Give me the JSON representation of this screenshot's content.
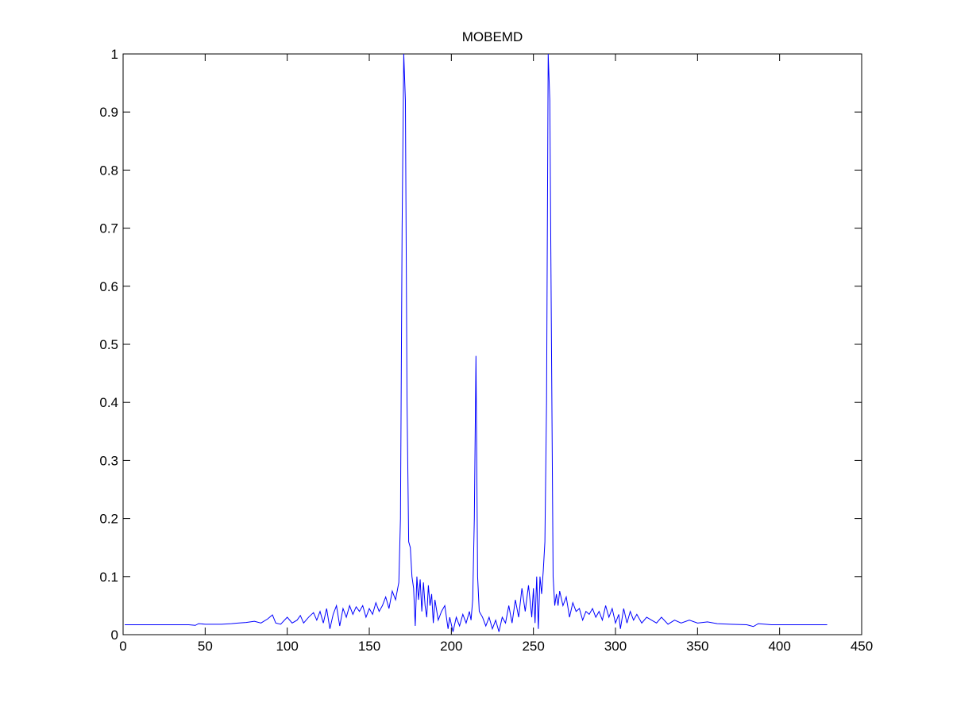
{
  "chart_data": {
    "type": "line",
    "title": "MOBEMD",
    "x": [
      1,
      20,
      40,
      44,
      46,
      50,
      60,
      66,
      70,
      75,
      80,
      84,
      88,
      91,
      93,
      96,
      100,
      103,
      106,
      108,
      110,
      113,
      116,
      118,
      120,
      122,
      124,
      126,
      128,
      130,
      132,
      134,
      136,
      138,
      140,
      142,
      144,
      146,
      148,
      150,
      152,
      154,
      156,
      158,
      160,
      162,
      164,
      166,
      168,
      169,
      170,
      171,
      172,
      173,
      174,
      175,
      176,
      177,
      178,
      179,
      180,
      181,
      182,
      183,
      184,
      185,
      186,
      187,
      188,
      189,
      190,
      192,
      194,
      196,
      198,
      199,
      201,
      203,
      205,
      207,
      209,
      211,
      212,
      213,
      214,
      215,
      216,
      217,
      219,
      221,
      223,
      225,
      227,
      229,
      231,
      233,
      235,
      237,
      239,
      241,
      243,
      245,
      247,
      249,
      250,
      251,
      252,
      253,
      254,
      255,
      256,
      257,
      258,
      259,
      260,
      261,
      262,
      263,
      264,
      265,
      266,
      268,
      270,
      272,
      274,
      276,
      278,
      280,
      282,
      284,
      286,
      288,
      290,
      292,
      294,
      296,
      298,
      300,
      302,
      303,
      305,
      307,
      309,
      311,
      313,
      316,
      319,
      322,
      325,
      328,
      332,
      336,
      340,
      345,
      350,
      356,
      362,
      370,
      380,
      384,
      387,
      395,
      410,
      429
    ],
    "series": [
      {
        "color": "#0000ff",
        "values": [
          0.017,
          0.017,
          0.017,
          0.016,
          0.019,
          0.018,
          0.018,
          0.019,
          0.02,
          0.021,
          0.023,
          0.02,
          0.027,
          0.034,
          0.02,
          0.018,
          0.03,
          0.02,
          0.025,
          0.033,
          0.02,
          0.03,
          0.038,
          0.025,
          0.04,
          0.02,
          0.045,
          0.01,
          0.035,
          0.05,
          0.015,
          0.045,
          0.03,
          0.05,
          0.035,
          0.048,
          0.04,
          0.05,
          0.03,
          0.045,
          0.035,
          0.055,
          0.04,
          0.05,
          0.065,
          0.045,
          0.075,
          0.06,
          0.09,
          0.2,
          0.7,
          1,
          0.92,
          0.4,
          0.16,
          0.15,
          0.1,
          0.08,
          0.015,
          0.1,
          0.06,
          0.095,
          0.04,
          0.09,
          0.05,
          0.03,
          0.085,
          0.05,
          0.07,
          0.02,
          0.06,
          0.025,
          0.04,
          0.05,
          0.01,
          0.03,
          0.005,
          0.03,
          0.015,
          0.035,
          0.02,
          0.04,
          0.025,
          0.06,
          0.2,
          0.48,
          0.1,
          0.04,
          0.03,
          0.015,
          0.03,
          0.01,
          0.025,
          0.005,
          0.03,
          0.02,
          0.05,
          0.02,
          0.06,
          0.03,
          0.08,
          0.04,
          0.085,
          0.03,
          0.08,
          0.02,
          0.1,
          0.01,
          0.1,
          0.07,
          0.11,
          0.16,
          0.4,
          1,
          0.92,
          0.5,
          0.1,
          0.05,
          0.07,
          0.05,
          0.075,
          0.05,
          0.065,
          0.03,
          0.055,
          0.04,
          0.045,
          0.025,
          0.04,
          0.035,
          0.045,
          0.03,
          0.04,
          0.025,
          0.05,
          0.03,
          0.045,
          0.02,
          0.035,
          0.01,
          0.045,
          0.02,
          0.04,
          0.025,
          0.035,
          0.02,
          0.03,
          0.025,
          0.02,
          0.03,
          0.018,
          0.025,
          0.02,
          0.025,
          0.02,
          0.022,
          0.019,
          0.018,
          0.017,
          0.014,
          0.019,
          0.017,
          0.017,
          0.017
        ]
      }
    ],
    "xlim": [
      0,
      450
    ],
    "xticks": [
      0,
      50,
      100,
      150,
      200,
      250,
      300,
      350,
      400,
      450
    ],
    "ylim": [
      0,
      1
    ],
    "yticks": [
      0,
      0.1,
      0.2,
      0.3,
      0.4,
      0.5,
      0.6,
      0.7,
      0.8,
      0.9,
      1
    ]
  }
}
